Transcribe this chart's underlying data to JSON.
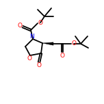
{
  "bg_color": "#ffffff",
  "bond_color": "#000000",
  "atom_colors": {
    "O": "#ff0000",
    "N": "#0000ff",
    "C": "#000000"
  },
  "line_width": 1.3,
  "figsize": [
    1.52,
    1.52
  ],
  "dpi": 100
}
